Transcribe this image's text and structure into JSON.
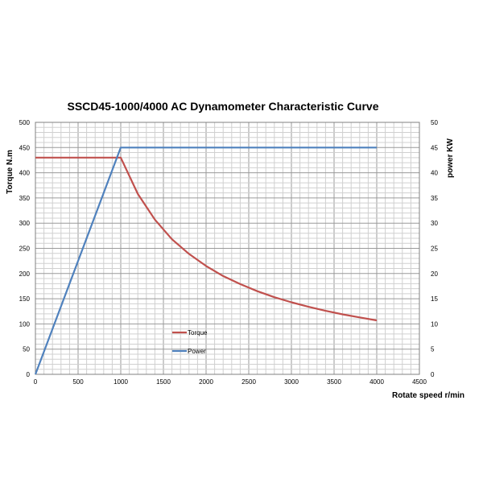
{
  "chart_data": {
    "type": "line",
    "title": "SSCD45-1000/4000 AC Dynamometer Characteristic Curve",
    "xlabel": "Rotate speed r/min",
    "ylabel": "Torque N.m",
    "y2label": "power KW",
    "xlim": [
      0,
      4500
    ],
    "ylim": [
      0,
      500
    ],
    "y2lim": [
      0,
      50
    ],
    "grid": true,
    "x_ticks": [
      "0",
      "500",
      "1000",
      "1500",
      "2000",
      "2500",
      "3000",
      "3500",
      "4000",
      "4500"
    ],
    "y_ticks": [
      "0",
      "50",
      "100",
      "150",
      "200",
      "250",
      "300",
      "350",
      "400",
      "450",
      "500"
    ],
    "y2_ticks": [
      "0",
      "5",
      "10",
      "15",
      "20",
      "25",
      "30",
      "35",
      "40",
      "45",
      "50"
    ],
    "legend_position": "center-left",
    "series": [
      {
        "name": "Torque",
        "axis": "left",
        "color": "#c0504d",
        "x": [
          0,
          1000,
          1200,
          1400,
          1600,
          1800,
          2000,
          2200,
          2400,
          2600,
          2800,
          3000,
          3200,
          3400,
          3600,
          3800,
          4000
        ],
        "values": [
          430,
          430,
          358,
          307,
          268,
          239,
          215,
          195,
          179,
          165,
          153,
          143,
          134,
          126,
          119,
          113,
          107
        ]
      },
      {
        "name": "Power",
        "axis": "right",
        "color": "#4f81bd",
        "x": [
          0,
          1000,
          1500,
          2000,
          2500,
          3000,
          3500,
          4000
        ],
        "values": [
          0,
          45,
          45,
          45,
          45,
          45,
          45,
          45
        ]
      }
    ]
  }
}
